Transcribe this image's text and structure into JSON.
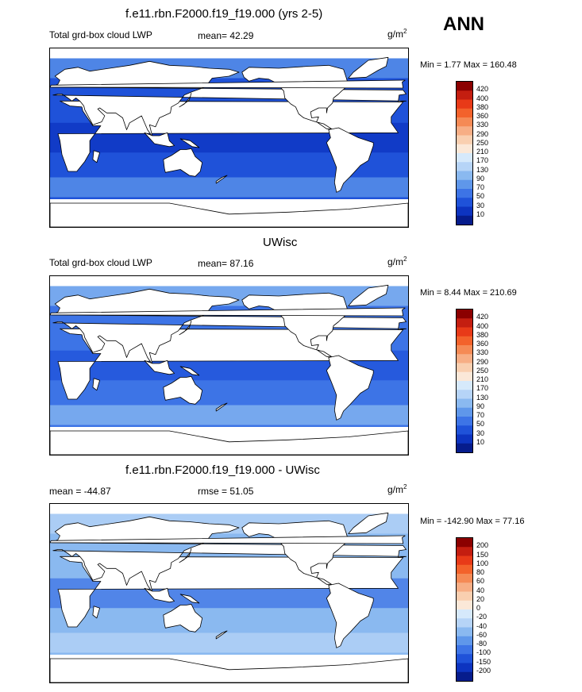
{
  "season": "ANN",
  "units_text": "g/m",
  "units_exp": "2",
  "colors": {
    "land": "#ffffff",
    "coast": "#000000"
  },
  "panels": [
    {
      "id": "model",
      "title": "f.e11.rbn.F2000.f19_f19.000 (yrs 2-5)",
      "left_label": "Total grd-box cloud LWP",
      "center_label": "mean=  42.29",
      "minmax": "Min =   1.77 Max = 160.48",
      "colorbar_labels": [
        "420",
        "400",
        "380",
        "360",
        "330",
        "290",
        "250",
        "210",
        "170",
        "130",
        "90",
        "70",
        "50",
        "30",
        "10"
      ],
      "colorbar_colors": [
        "#8b0000",
        "#c41e10",
        "#e83a18",
        "#f3622b",
        "#f58a55",
        "#f7ae85",
        "#f9cfb0",
        "#fbe8d8",
        "#d6e9fb",
        "#b6d4f7",
        "#8ab9f0",
        "#5f97ea",
        "#3d74e6",
        "#1f52d9",
        "#0d34c0",
        "#061c8c"
      ],
      "ocean_color": "#1f52d9",
      "ocean_dark": "#0d34c0",
      "ocean_light": "#5f97ea"
    },
    {
      "id": "obs",
      "title": "UWisc",
      "left_label": "Total grd-box cloud LWP",
      "center_label": "mean=  87.16",
      "minmax": "Min =   8.44 Max = 210.69",
      "colorbar_labels": [
        "420",
        "400",
        "380",
        "360",
        "330",
        "290",
        "250",
        "210",
        "170",
        "130",
        "90",
        "70",
        "50",
        "30",
        "10"
      ],
      "colorbar_colors": [
        "#8b0000",
        "#c41e10",
        "#e83a18",
        "#f3622b",
        "#f58a55",
        "#f7ae85",
        "#f9cfb0",
        "#fbe8d8",
        "#d6e9fb",
        "#b6d4f7",
        "#8ab9f0",
        "#5f97ea",
        "#3d74e6",
        "#1f52d9",
        "#0d34c0",
        "#061c8c"
      ],
      "ocean_color": "#3d74e6",
      "ocean_dark": "#1f52d9",
      "ocean_light": "#8ab9f0"
    },
    {
      "id": "diff",
      "title": "f.e11.rbn.F2000.f19_f19.000 - UWisc",
      "left_label": "mean = -44.87",
      "center_label": "rmse =  51.05",
      "minmax": "Min = -142.90 Max =  77.16",
      "colorbar_labels": [
        "200",
        "150",
        "100",
        "80",
        "60",
        "40",
        "20",
        "0",
        "-20",
        "-40",
        "-60",
        "-80",
        "-100",
        "-150",
        "-200"
      ],
      "colorbar_colors": [
        "#8b0000",
        "#c41e10",
        "#e83a18",
        "#f3622b",
        "#f58a55",
        "#f7ae85",
        "#f9cfb0",
        "#fbe8d8",
        "#d6e9fb",
        "#b6d4f7",
        "#8ab9f0",
        "#5f97ea",
        "#3d74e6",
        "#1f52d9",
        "#0d34c0",
        "#061c8c"
      ],
      "ocean_color": "#8ab9f0",
      "ocean_dark": "#3d74e6",
      "ocean_light": "#b6d4f7"
    }
  ],
  "chart_data": [
    {
      "type": "heatmap",
      "title": "f.e11.rbn.F2000.f19_f19.000 (yrs 2-5)",
      "variable": "Total grd-box cloud LWP",
      "units": "g/m2",
      "mean": 42.29,
      "min": 1.77,
      "max": 160.48,
      "contour_levels": [
        10,
        30,
        50,
        70,
        90,
        130,
        170,
        210,
        250,
        290,
        330,
        360,
        380,
        400,
        420
      ]
    },
    {
      "type": "heatmap",
      "title": "UWisc",
      "variable": "Total grd-box cloud LWP",
      "units": "g/m2",
      "mean": 87.16,
      "min": 8.44,
      "max": 210.69,
      "contour_levels": [
        10,
        30,
        50,
        70,
        90,
        130,
        170,
        210,
        250,
        290,
        330,
        360,
        380,
        400,
        420
      ]
    },
    {
      "type": "heatmap",
      "title": "f.e11.rbn.F2000.f19_f19.000 - UWisc",
      "units": "g/m2",
      "mean": -44.87,
      "rmse": 51.05,
      "min": -142.9,
      "max": 77.16,
      "contour_levels": [
        -200,
        -150,
        -100,
        -80,
        -60,
        -40,
        -20,
        0,
        20,
        40,
        60,
        80,
        100,
        150,
        200
      ]
    }
  ]
}
